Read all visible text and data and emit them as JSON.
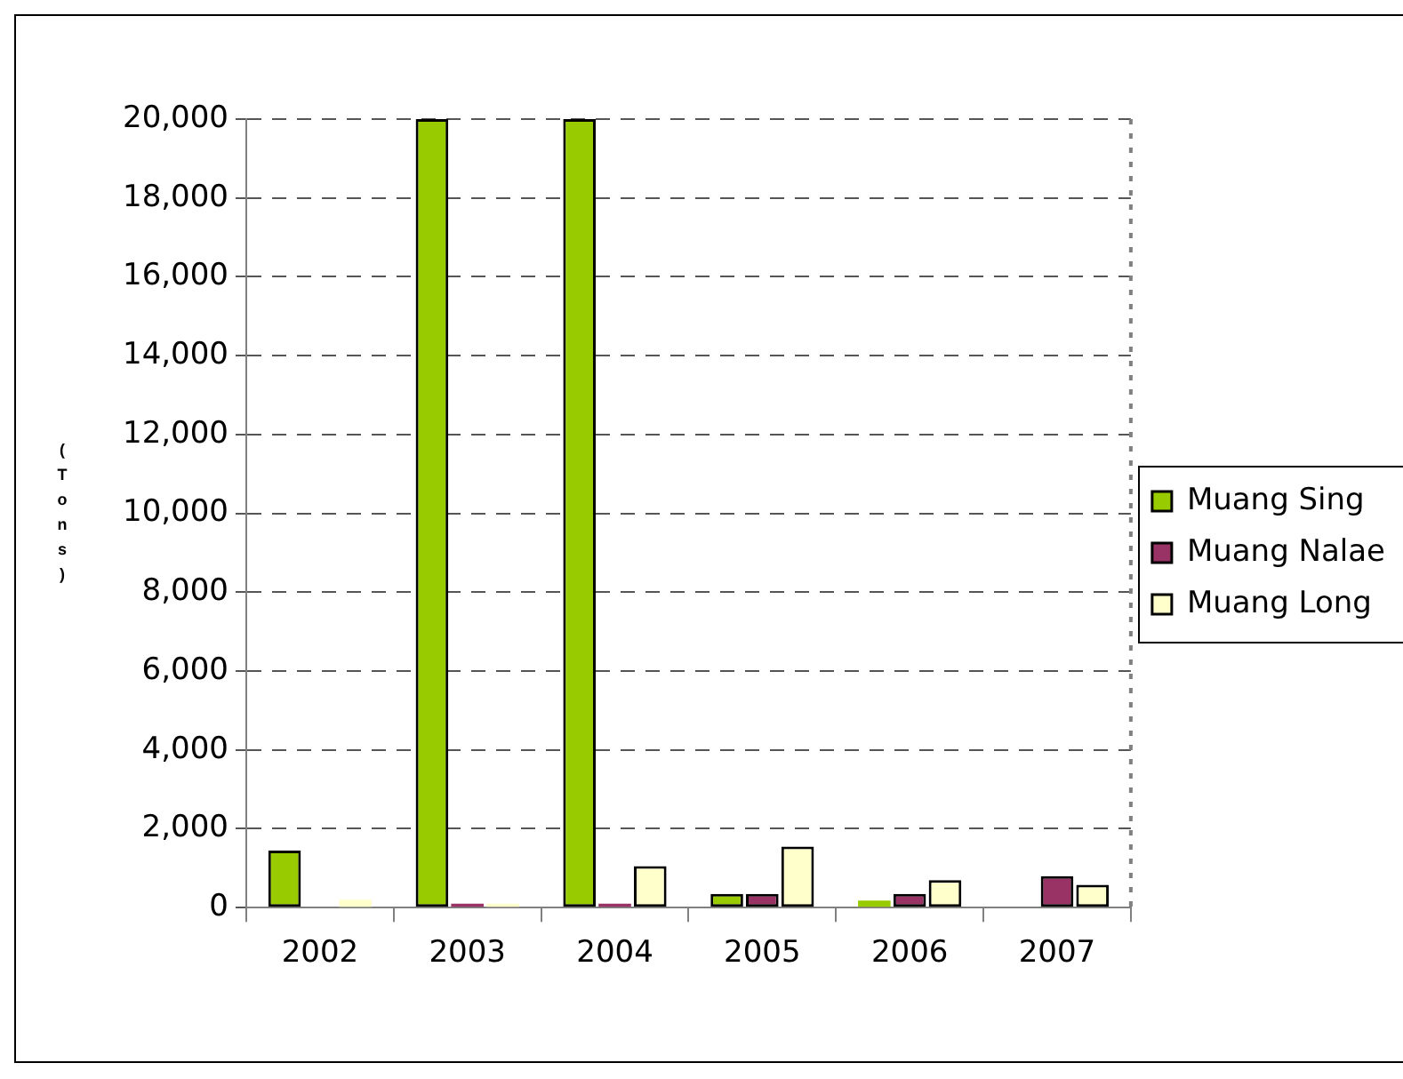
{
  "chart_data": {
    "type": "bar",
    "ylabel": "(Tons)",
    "categories": [
      "2002",
      "2003",
      "2004",
      "2005",
      "2006",
      "2007"
    ],
    "series": [
      {
        "name": "Muang Sing",
        "color": "#99cc00",
        "values": [
          1450,
          20000,
          20000,
          350,
          180,
          null
        ]
      },
      {
        "name": "Muang Nalae",
        "color": "#993366",
        "values": [
          null,
          100,
          100,
          350,
          350,
          800
        ]
      },
      {
        "name": "Muang Long",
        "color": "#ffffcc",
        "values": [
          200,
          100,
          1050,
          1550,
          700,
          580
        ]
      }
    ],
    "ylim": [
      0,
      20000
    ],
    "yticks": [
      {
        "value": 0,
        "label": "0"
      },
      {
        "value": 2000,
        "label": "2,000"
      },
      {
        "value": 4000,
        "label": "4,000"
      },
      {
        "value": 6000,
        "label": "6,000"
      },
      {
        "value": 8000,
        "label": "8,000"
      },
      {
        "value": 10000,
        "label": "10,000"
      },
      {
        "value": 12000,
        "label": "12,000"
      },
      {
        "value": 14000,
        "label": "14,000"
      },
      {
        "value": 16000,
        "label": "16,000"
      },
      {
        "value": 18000,
        "label": "18,000"
      },
      {
        "value": 20000,
        "label": "20,000"
      }
    ],
    "grid": "y",
    "legend": "right"
  }
}
